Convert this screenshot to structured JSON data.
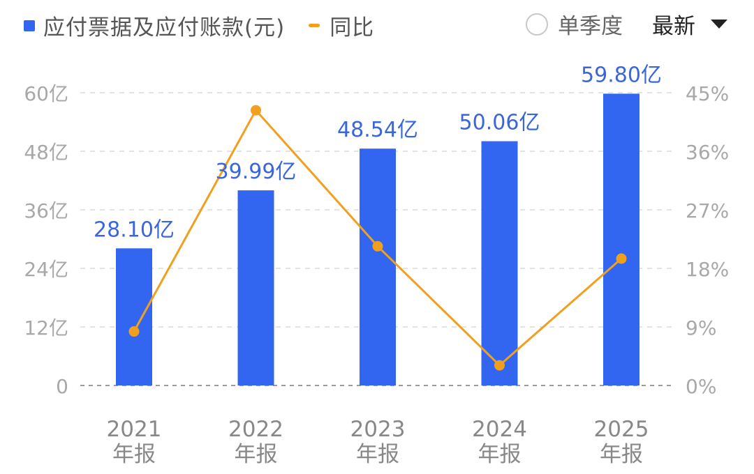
{
  "legend": {
    "bar_label": "应付票据及应付账款(元)",
    "line_label": "同比",
    "bar_color": "#3366f0",
    "line_color": "#f0a01e"
  },
  "controls": {
    "single_quarter_label": "单季度",
    "single_quarter_checked": false,
    "period_label": "最新"
  },
  "colors": {
    "bar": "#3366f0",
    "line": "#f0a01e",
    "data_label": "#3a66dc",
    "axis_text": "#a8a8a8",
    "category_text": "#888888",
    "grid": "#e3e3e3",
    "baseline": "#9a9a9a"
  },
  "chart_data": {
    "type": "bar",
    "categories": [
      "2021\n年报",
      "2022\n年报",
      "2023\n年报",
      "2024\n年报",
      "2025\n年报"
    ],
    "series": [
      {
        "type": "bar",
        "axis": "left",
        "values": [
          28.1,
          39.99,
          48.54,
          50.06,
          59.8
        ],
        "data_labels": [
          "28.10亿",
          "39.99亿",
          "48.54亿",
          "50.06亿",
          "59.80亿"
        ]
      },
      {
        "type": "line",
        "axis": "right",
        "values": [
          8.3,
          42.3,
          21.4,
          3.1,
          19.5
        ]
      }
    ],
    "y_left": {
      "min": 0,
      "max": 60,
      "ticks": [
        0,
        12,
        24,
        36,
        48,
        60
      ],
      "tick_labels": [
        "0",
        "12亿",
        "24亿",
        "36亿",
        "48亿",
        "60亿"
      ]
    },
    "y_right": {
      "min": 0,
      "max": 45,
      "ticks": [
        0,
        9,
        18,
        27,
        36,
        45
      ],
      "tick_labels": [
        "0%",
        "9%",
        "18%",
        "27%",
        "36%",
        "45%"
      ]
    },
    "grid": true
  }
}
